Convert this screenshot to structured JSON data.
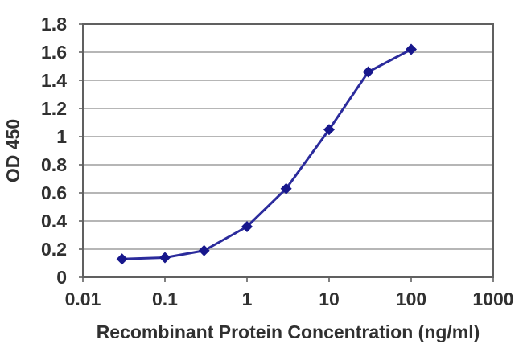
{
  "chart_data": {
    "type": "line",
    "title": "",
    "xlabel": "Recombinant Protein Concentration (ng/ml)",
    "ylabel": "OD 450",
    "x_scale": "log",
    "x": [
      0.03,
      0.1,
      0.3,
      1,
      3,
      10,
      30,
      100
    ],
    "y": [
      0.13,
      0.14,
      0.19,
      0.36,
      0.63,
      1.05,
      1.46,
      1.62
    ],
    "x_ticks": [
      {
        "value": 0.01,
        "label": "0.01"
      },
      {
        "value": 0.1,
        "label": "0.1"
      },
      {
        "value": 1,
        "label": "1"
      },
      {
        "value": 10,
        "label": "10"
      },
      {
        "value": 100,
        "label": "100"
      },
      {
        "value": 1000,
        "label": "1000"
      }
    ],
    "y_ticks": [
      {
        "value": 0,
        "label": "0"
      },
      {
        "value": 0.2,
        "label": "0.2"
      },
      {
        "value": 0.4,
        "label": "0.4"
      },
      {
        "value": 0.6,
        "label": "0.6"
      },
      {
        "value": 0.8,
        "label": "0.8"
      },
      {
        "value": 1,
        "label": "1"
      },
      {
        "value": 1.2,
        "label": "1.2"
      },
      {
        "value": 1.4,
        "label": "1.4"
      },
      {
        "value": 1.6,
        "label": "1.6"
      },
      {
        "value": 1.8,
        "label": "1.8"
      }
    ],
    "xlim": [
      0.01,
      1000
    ],
    "ylim": [
      0,
      1.8
    ],
    "grid": "horizontal",
    "legend": "none",
    "marker": "diamond",
    "colors": {
      "line": "#2b2b9c",
      "marker": "#17178c",
      "grid": "#9e9e9e",
      "frame": "#606060",
      "text": "#303030",
      "background": "#ffffff"
    }
  }
}
